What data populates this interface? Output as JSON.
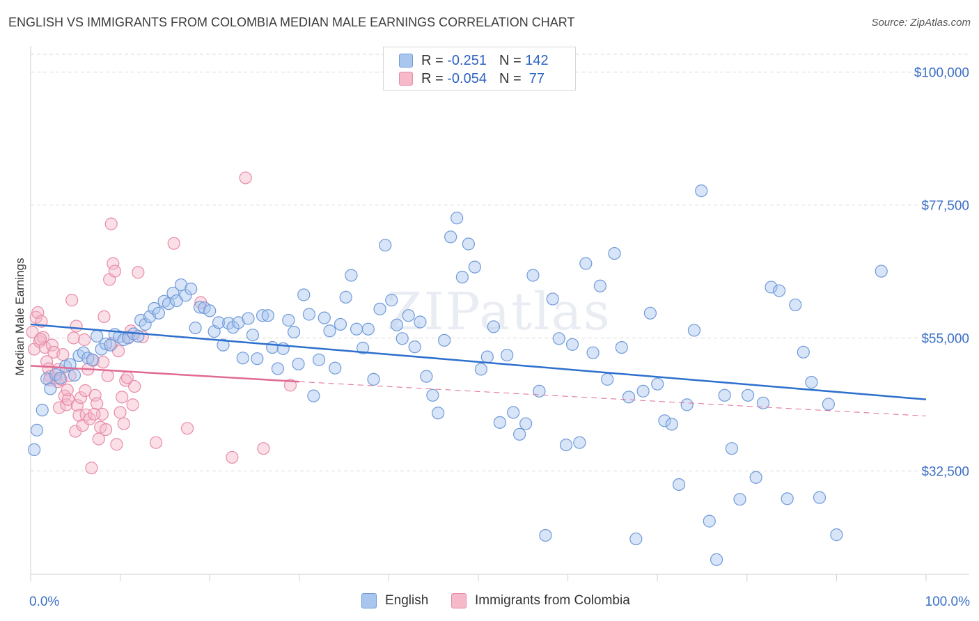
{
  "title": "ENGLISH VS IMMIGRANTS FROM COLOMBIA MEDIAN MALE EARNINGS CORRELATION CHART",
  "source": "Source: ZipAtlas.com",
  "watermark": "ZIPatlas",
  "legend": {
    "rows": [
      {
        "r_label": "R = ",
        "r_value": "-0.251",
        "n_label": "N = ",
        "n_value": "142"
      },
      {
        "r_label": "R = ",
        "r_value": "-0.054",
        "n_label": "N = ",
        "n_value": " 77"
      }
    ]
  },
  "bottom_legend": [
    "English",
    "Immigrants from Colombia"
  ],
  "colors": {
    "english_fill": "#a9c6ef",
    "english_stroke": "#6f9ad8",
    "english_line": "#2d6fcc",
    "colombia_fill": "#f5b9ca",
    "colombia_stroke": "#e88ba8",
    "colombia_line": "#e06a93",
    "grid": "#d9d9d9",
    "axis_text": "#3b6fc6"
  },
  "chart_data": {
    "type": "scatter",
    "title": "ENGLISH VS IMMIGRANTS FROM COLOMBIA MEDIAN MALE EARNINGS CORRELATION CHART",
    "xlabel": "",
    "ylabel": "Median Male Earnings",
    "xlim": [
      0,
      100
    ],
    "ylim": [
      15000,
      103000
    ],
    "x_tick_labels": [
      "0.0%",
      "100.0%"
    ],
    "y_ticks": [
      32500,
      55000,
      77500,
      100000
    ],
    "y_tick_labels": [
      "$32,500",
      "$55,000",
      "$77,500",
      "$100,000"
    ],
    "grid": true,
    "legend_position": "top-center",
    "series": [
      {
        "name": "English",
        "stats": {
          "R": -0.251,
          "N": 142
        },
        "trend": {
          "x": [
            0,
            100
          ],
          "y": [
            57300,
            44600
          ]
        },
        "points": [
          [
            0.4,
            36100
          ],
          [
            0.7,
            39400
          ],
          [
            1.3,
            42800
          ],
          [
            1.8,
            48100
          ],
          [
            2.2,
            46400
          ],
          [
            2.8,
            48800
          ],
          [
            3.3,
            48200
          ],
          [
            3.9,
            50200
          ],
          [
            4.4,
            50500
          ],
          [
            4.9,
            48700
          ],
          [
            5.4,
            52000
          ],
          [
            5.9,
            52500
          ],
          [
            6.4,
            51600
          ],
          [
            6.9,
            51300
          ],
          [
            7.4,
            55300
          ],
          [
            7.9,
            53100
          ],
          [
            8.4,
            54000
          ],
          [
            8.9,
            53800
          ],
          [
            9.4,
            55600
          ],
          [
            9.9,
            55200
          ],
          [
            10.4,
            54700
          ],
          [
            10.9,
            55000
          ],
          [
            11.5,
            55700
          ],
          [
            12.0,
            55300
          ],
          [
            12.3,
            58000
          ],
          [
            12.8,
            57300
          ],
          [
            13.3,
            58600
          ],
          [
            13.8,
            60000
          ],
          [
            14.3,
            59200
          ],
          [
            14.9,
            61200
          ],
          [
            15.4,
            60800
          ],
          [
            15.9,
            62600
          ],
          [
            16.3,
            61300
          ],
          [
            16.8,
            64000
          ],
          [
            17.3,
            62200
          ],
          [
            17.9,
            63300
          ],
          [
            18.4,
            56700
          ],
          [
            18.9,
            60200
          ],
          [
            19.4,
            60100
          ],
          [
            20.0,
            59600
          ],
          [
            20.5,
            56100
          ],
          [
            21.0,
            57600
          ],
          [
            21.5,
            53800
          ],
          [
            22.1,
            57500
          ],
          [
            22.6,
            56800
          ],
          [
            23.2,
            57600
          ],
          [
            23.7,
            51600
          ],
          [
            24.3,
            58300
          ],
          [
            24.8,
            55500
          ],
          [
            25.3,
            51500
          ],
          [
            25.9,
            58800
          ],
          [
            26.5,
            58800
          ],
          [
            27.0,
            53400
          ],
          [
            27.6,
            49800
          ],
          [
            28.2,
            53200
          ],
          [
            28.8,
            58000
          ],
          [
            29.4,
            56000
          ],
          [
            29.9,
            50600
          ],
          [
            30.5,
            62300
          ],
          [
            31.1,
            59000
          ],
          [
            31.6,
            45200
          ],
          [
            32.2,
            51300
          ],
          [
            32.8,
            58400
          ],
          [
            33.4,
            56200
          ],
          [
            34.0,
            49900
          ],
          [
            34.6,
            57300
          ],
          [
            35.2,
            61900
          ],
          [
            35.8,
            65600
          ],
          [
            36.4,
            56500
          ],
          [
            37.1,
            53300
          ],
          [
            37.7,
            56500
          ],
          [
            38.3,
            48000
          ],
          [
            39.0,
            59900
          ],
          [
            39.6,
            70700
          ],
          [
            40.3,
            61400
          ],
          [
            40.9,
            57200
          ],
          [
            41.5,
            54900
          ],
          [
            42.2,
            58800
          ],
          [
            42.9,
            53500
          ],
          [
            43.5,
            57700
          ],
          [
            44.2,
            48500
          ],
          [
            44.9,
            45300
          ],
          [
            45.5,
            42300
          ],
          [
            46.2,
            54600
          ],
          [
            46.9,
            72100
          ],
          [
            47.6,
            75300
          ],
          [
            48.2,
            65300
          ],
          [
            48.9,
            70900
          ],
          [
            49.6,
            67000
          ],
          [
            50.3,
            49700
          ],
          [
            51.0,
            51800
          ],
          [
            51.7,
            56900
          ],
          [
            52.4,
            40700
          ],
          [
            53.2,
            52100
          ],
          [
            53.9,
            42400
          ],
          [
            54.6,
            38700
          ],
          [
            55.3,
            40500
          ],
          [
            56.1,
            65600
          ],
          [
            56.8,
            46000
          ],
          [
            57.5,
            21600
          ],
          [
            58.3,
            61600
          ],
          [
            59.0,
            54900
          ],
          [
            59.8,
            36900
          ],
          [
            60.5,
            53900
          ],
          [
            61.3,
            37300
          ],
          [
            62.0,
            67600
          ],
          [
            62.8,
            52500
          ],
          [
            63.6,
            63800
          ],
          [
            64.4,
            48000
          ],
          [
            65.2,
            69300
          ],
          [
            66.0,
            53400
          ],
          [
            66.8,
            45000
          ],
          [
            67.6,
            21000
          ],
          [
            68.4,
            46000
          ],
          [
            69.2,
            59200
          ],
          [
            70.0,
            47200
          ],
          [
            70.8,
            41000
          ],
          [
            71.6,
            40400
          ],
          [
            72.4,
            30200
          ],
          [
            73.3,
            43700
          ],
          [
            74.1,
            56300
          ],
          [
            74.9,
            79900
          ],
          [
            75.8,
            24000
          ],
          [
            76.6,
            17500
          ],
          [
            77.5,
            45300
          ],
          [
            78.3,
            36300
          ],
          [
            79.2,
            27700
          ],
          [
            80.1,
            45300
          ],
          [
            81.0,
            31400
          ],
          [
            81.8,
            44000
          ],
          [
            82.7,
            63600
          ],
          [
            83.6,
            63000
          ],
          [
            84.5,
            27800
          ],
          [
            85.4,
            60600
          ],
          [
            86.3,
            52600
          ],
          [
            87.2,
            47500
          ],
          [
            88.1,
            28000
          ],
          [
            89.1,
            43800
          ],
          [
            90.0,
            21700
          ],
          [
            95.0,
            66300
          ]
        ]
      },
      {
        "name": "Immigrants from Colombia",
        "stats": {
          "R": -0.054,
          "N": 77
        },
        "trend": {
          "x": [
            0,
            30
          ],
          "y": [
            50300,
            47600
          ]
        },
        "trend_dashed": {
          "x": [
            30,
            100
          ],
          "y": [
            47600,
            41800
          ]
        },
        "points": [
          [
            0.2,
            56000
          ],
          [
            0.4,
            53100
          ],
          [
            0.6,
            58500
          ],
          [
            0.8,
            59300
          ],
          [
            1.0,
            54400
          ],
          [
            1.2,
            57800
          ],
          [
            1.4,
            55100
          ],
          [
            1.6,
            53400
          ],
          [
            1.8,
            51000
          ],
          [
            2.0,
            49800
          ],
          [
            2.2,
            48500
          ],
          [
            2.4,
            53800
          ],
          [
            2.6,
            52600
          ],
          [
            2.8,
            48200
          ],
          [
            3.0,
            47600
          ],
          [
            3.2,
            43200
          ],
          [
            3.4,
            48000
          ],
          [
            3.6,
            52200
          ],
          [
            3.8,
            45200
          ],
          [
            4.0,
            43700
          ],
          [
            4.2,
            44600
          ],
          [
            4.4,
            48600
          ],
          [
            4.6,
            61400
          ],
          [
            4.8,
            55000
          ],
          [
            5.0,
            39200
          ],
          [
            5.2,
            43600
          ],
          [
            5.4,
            41900
          ],
          [
            5.6,
            44900
          ],
          [
            5.8,
            40200
          ],
          [
            6.0,
            54700
          ],
          [
            6.2,
            42000
          ],
          [
            6.4,
            49700
          ],
          [
            6.6,
            41300
          ],
          [
            6.8,
            33000
          ],
          [
            7.0,
            51200
          ],
          [
            7.2,
            45300
          ],
          [
            7.4,
            43900
          ],
          [
            7.6,
            37900
          ],
          [
            7.8,
            39900
          ],
          [
            8.0,
            42100
          ],
          [
            8.2,
            58600
          ],
          [
            8.4,
            39500
          ],
          [
            8.6,
            48600
          ],
          [
            8.8,
            64900
          ],
          [
            9.0,
            74300
          ],
          [
            9.2,
            67600
          ],
          [
            9.4,
            66300
          ],
          [
            9.6,
            37000
          ],
          [
            9.8,
            52800
          ],
          [
            10.0,
            42400
          ],
          [
            10.2,
            45000
          ],
          [
            10.4,
            40500
          ],
          [
            10.6,
            47800
          ],
          [
            10.8,
            48300
          ],
          [
            11.0,
            55200
          ],
          [
            11.2,
            56200
          ],
          [
            11.4,
            43700
          ],
          [
            11.6,
            46800
          ],
          [
            12.0,
            66100
          ],
          [
            12.5,
            55200
          ],
          [
            14.0,
            37300
          ],
          [
            16.0,
            71000
          ],
          [
            17.5,
            39700
          ],
          [
            19.0,
            61000
          ],
          [
            22.5,
            34800
          ],
          [
            24.0,
            82100
          ],
          [
            26.0,
            36300
          ],
          [
            29.0,
            47000
          ],
          [
            1.1,
            54800
          ],
          [
            2.1,
            47900
          ],
          [
            3.1,
            49700
          ],
          [
            4.1,
            46200
          ],
          [
            5.1,
            57000
          ],
          [
            6.1,
            46100
          ],
          [
            7.1,
            42100
          ],
          [
            8.1,
            50900
          ],
          [
            9.1,
            54100
          ]
        ]
      }
    ]
  }
}
